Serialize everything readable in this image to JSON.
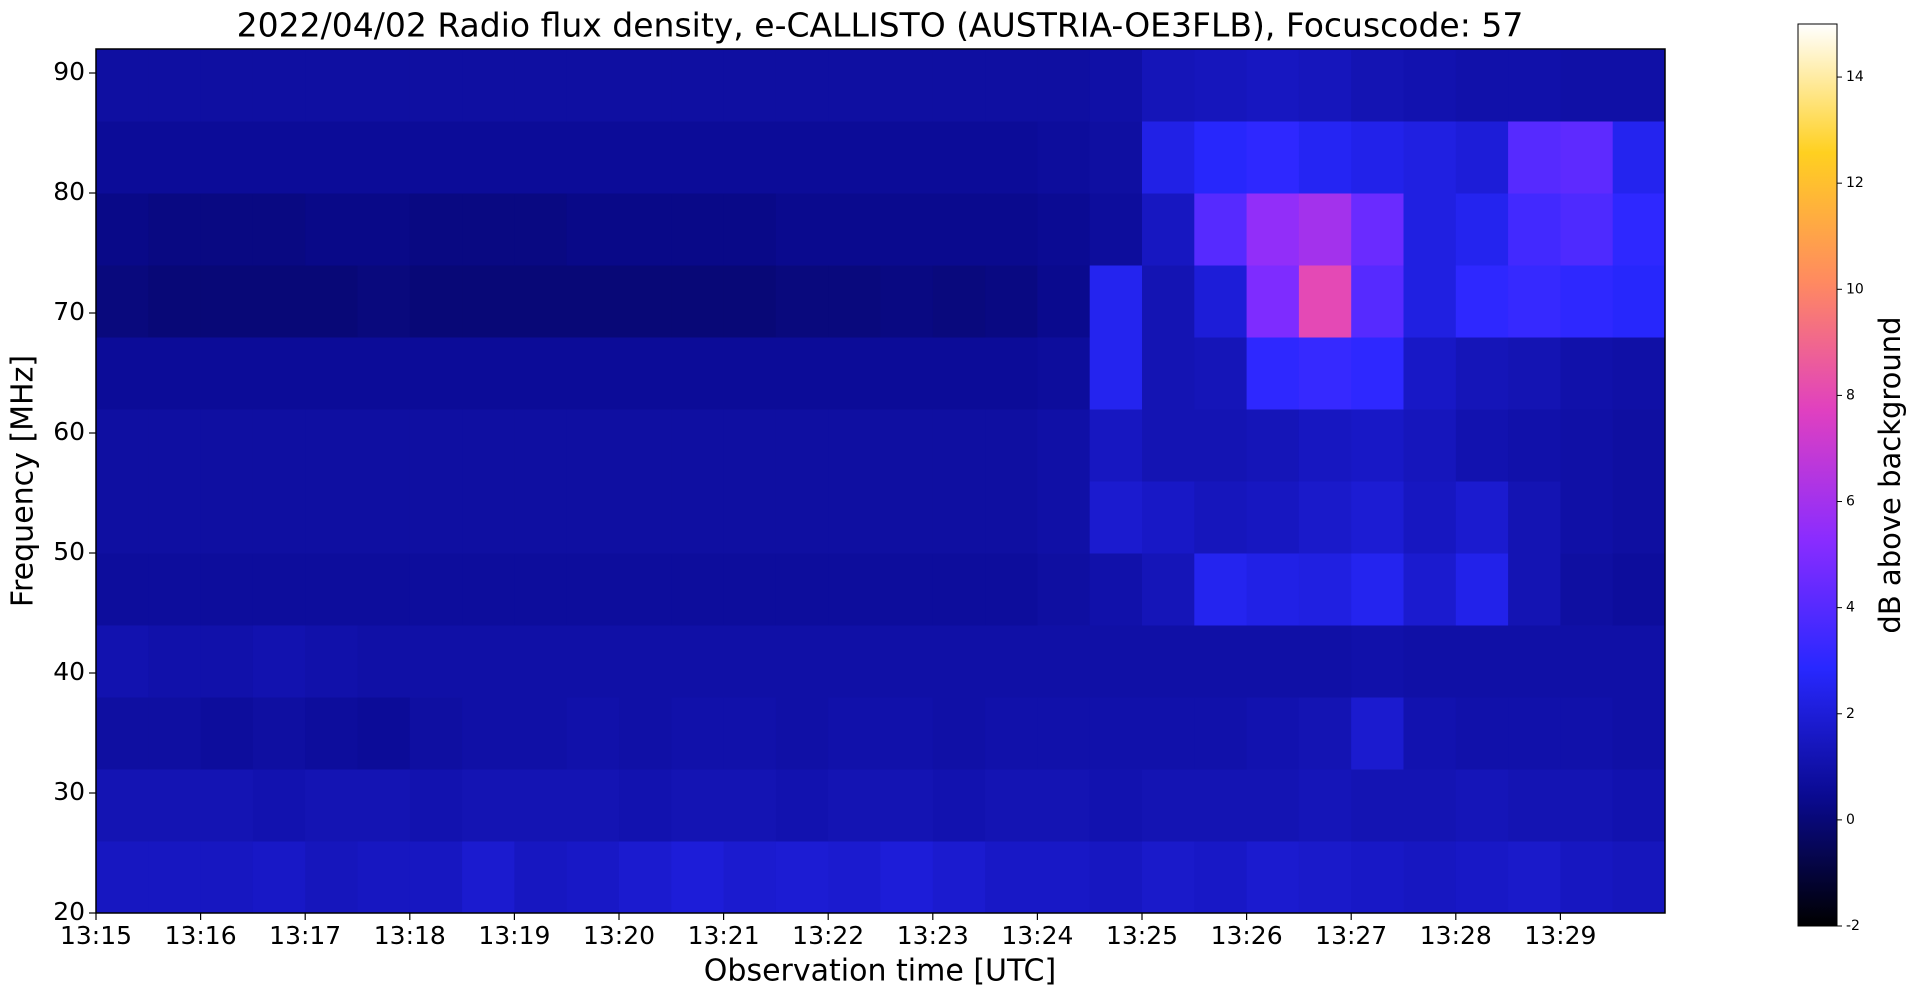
{
  "chart_data": {
    "type": "spectrogram",
    "title": "2022/04/02  Radio flux density, e-CALLISTO (AUSTRIA-OE3FLB), Focuscode: 57",
    "x_label": "Observation time [UTC]",
    "y_label": "Frequency [MHz]",
    "colorbar_label": "dB above background",
    "xlim": [
      0,
      15
    ],
    "xticks": [
      {
        "value": 0,
        "label": "13:15"
      },
      {
        "value": 1,
        "label": "13:16"
      },
      {
        "value": 2,
        "label": "13:17"
      },
      {
        "value": 3,
        "label": "13:18"
      },
      {
        "value": 4,
        "label": "13:19"
      },
      {
        "value": 5,
        "label": "13:20"
      },
      {
        "value": 6,
        "label": "13:21"
      },
      {
        "value": 7,
        "label": "13:22"
      },
      {
        "value": 8,
        "label": "13:23"
      },
      {
        "value": 9,
        "label": "13:24"
      },
      {
        "value": 10,
        "label": "13:25"
      },
      {
        "value": 11,
        "label": "13:26"
      },
      {
        "value": 12,
        "label": "13:27"
      },
      {
        "value": 13,
        "label": "13:28"
      },
      {
        "value": 14,
        "label": "13:29"
      }
    ],
    "ylim": [
      20,
      92
    ],
    "yticks": [
      20,
      30,
      40,
      50,
      60,
      70,
      80,
      90
    ],
    "zlim": [
      -2,
      15
    ],
    "zticks": [
      -2,
      0,
      2,
      4,
      6,
      8,
      10,
      12,
      14
    ],
    "colormap": [
      "#000000",
      "#0a0a90",
      "#2828ff",
      "#8a2cff",
      "#e040c0",
      "#ff8a60",
      "#ffd020",
      "#ffffff"
    ],
    "z": [
      [
        1.5,
        1.5,
        1.5,
        1.6,
        1.4,
        1.5,
        1.5,
        1.8,
        1.5,
        1.6,
        1.8,
        2,
        1.8,
        1.9,
        1.8,
        2,
        1.8,
        1.6,
        1.6,
        1.5,
        1.7,
        1.6,
        1.8,
        1.7,
        1.6,
        1.5,
        1.6,
        1.7,
        1.5,
        1.4
      ],
      [
        1.2,
        1.2,
        1.2,
        1.1,
        1.2,
        1.2,
        1.1,
        1.2,
        1.2,
        1.2,
        1.1,
        1.2,
        1.2,
        1.1,
        1.2,
        1.2,
        1.1,
        1.2,
        1.2,
        1.1,
        1.2,
        1.2,
        1.2,
        1.3,
        1.2,
        1.2,
        1.3,
        1.2,
        1.2,
        1.1
      ],
      [
        0.8,
        0.8,
        0.7,
        0.8,
        0.7,
        0.6,
        0.8,
        0.9,
        0.9,
        1,
        0.9,
        1,
        1,
        0.9,
        1,
        1,
        0.9,
        1,
        1,
        1,
        1,
        1,
        1.1,
        1.2,
        1.8,
        1.1,
        1,
        1,
        1,
        0.9
      ],
      [
        1.1,
        1,
        1,
        1.1,
        1,
        0.9,
        0.9,
        0.9,
        0.9,
        0.9,
        0.9,
        0.9,
        0.9,
        0.9,
        0.9,
        0.9,
        0.9,
        0.9,
        0.9,
        0.9,
        0.9,
        0.9,
        0.9,
        0.9,
        1,
        0.9,
        0.9,
        0.9,
        0.9,
        0.9
      ],
      [
        0.7,
        0.7,
        0.7,
        0.7,
        0.7,
        0.7,
        0.7,
        0.7,
        0.7,
        0.7,
        0.7,
        0.7,
        0.7,
        0.7,
        0.7,
        0.7,
        0.7,
        0.7,
        0.8,
        1,
        1.3,
        2.5,
        2.3,
        2.2,
        2.5,
        1.8,
        2.4,
        1.2,
        0.8,
        0.7
      ],
      [
        0.8,
        0.8,
        0.8,
        0.8,
        0.8,
        0.8,
        0.8,
        0.8,
        0.8,
        0.8,
        0.8,
        0.8,
        0.8,
        0.8,
        0.8,
        0.8,
        0.8,
        0.8,
        0.9,
        1.8,
        1.6,
        1.4,
        1.5,
        1.7,
        1.9,
        1.5,
        1.8,
        1.2,
        0.9,
        0.8
      ],
      [
        0.8,
        0.8,
        0.8,
        0.8,
        0.8,
        0.8,
        0.8,
        0.8,
        0.8,
        0.8,
        0.8,
        0.8,
        0.8,
        0.8,
        0.8,
        0.8,
        0.8,
        0.8,
        0.9,
        1.5,
        1.2,
        1.2,
        1.3,
        1.5,
        1.6,
        1.4,
        1.1,
        1,
        0.9,
        0.8
      ],
      [
        0.6,
        0.6,
        0.6,
        0.6,
        0.6,
        0.6,
        0.6,
        0.6,
        0.6,
        0.6,
        0.6,
        0.6,
        0.6,
        0.6,
        0.6,
        0.6,
        0.6,
        0.6,
        0.7,
        2.5,
        1.2,
        1.3,
        3,
        3.2,
        3,
        1.6,
        1.3,
        1.2,
        1,
        0.9
      ],
      [
        0.1,
        0,
        0,
        0,
        0,
        0.1,
        0,
        0,
        0,
        0,
        0,
        0,
        0,
        0.1,
        0.1,
        0.2,
        0.1,
        0.2,
        0.4,
        2.5,
        1.2,
        2,
        5,
        8,
        4,
        2.2,
        3,
        3.2,
        3,
        2.8
      ],
      [
        0.3,
        0.2,
        0.2,
        0.2,
        0.3,
        0.3,
        0.2,
        0.2,
        0.2,
        0.3,
        0.3,
        0.3,
        0.3,
        0.4,
        0.4,
        0.4,
        0.4,
        0.4,
        0.5,
        0.7,
        1.5,
        4,
        5.5,
        6,
        4.5,
        2.2,
        2.5,
        3.5,
        3.8,
        3
      ],
      [
        0.6,
        0.6,
        0.6,
        0.6,
        0.6,
        0.6,
        0.6,
        0.6,
        0.6,
        0.6,
        0.6,
        0.6,
        0.6,
        0.6,
        0.6,
        0.6,
        0.6,
        0.6,
        0.7,
        0.8,
        2.3,
        2.8,
        3,
        2.6,
        2.4,
        2.2,
        2,
        4,
        4.2,
        2.5
      ],
      [
        0.8,
        0.8,
        0.8,
        0.8,
        0.8,
        0.8,
        0.8,
        0.8,
        0.8,
        0.8,
        0.8,
        0.8,
        0.8,
        0.8,
        0.8,
        0.8,
        0.8,
        0.8,
        0.8,
        0.9,
        1.3,
        1.4,
        1.5,
        1.4,
        1.2,
        1.1,
        1,
        1,
        0.9,
        0.9
      ]
    ]
  }
}
